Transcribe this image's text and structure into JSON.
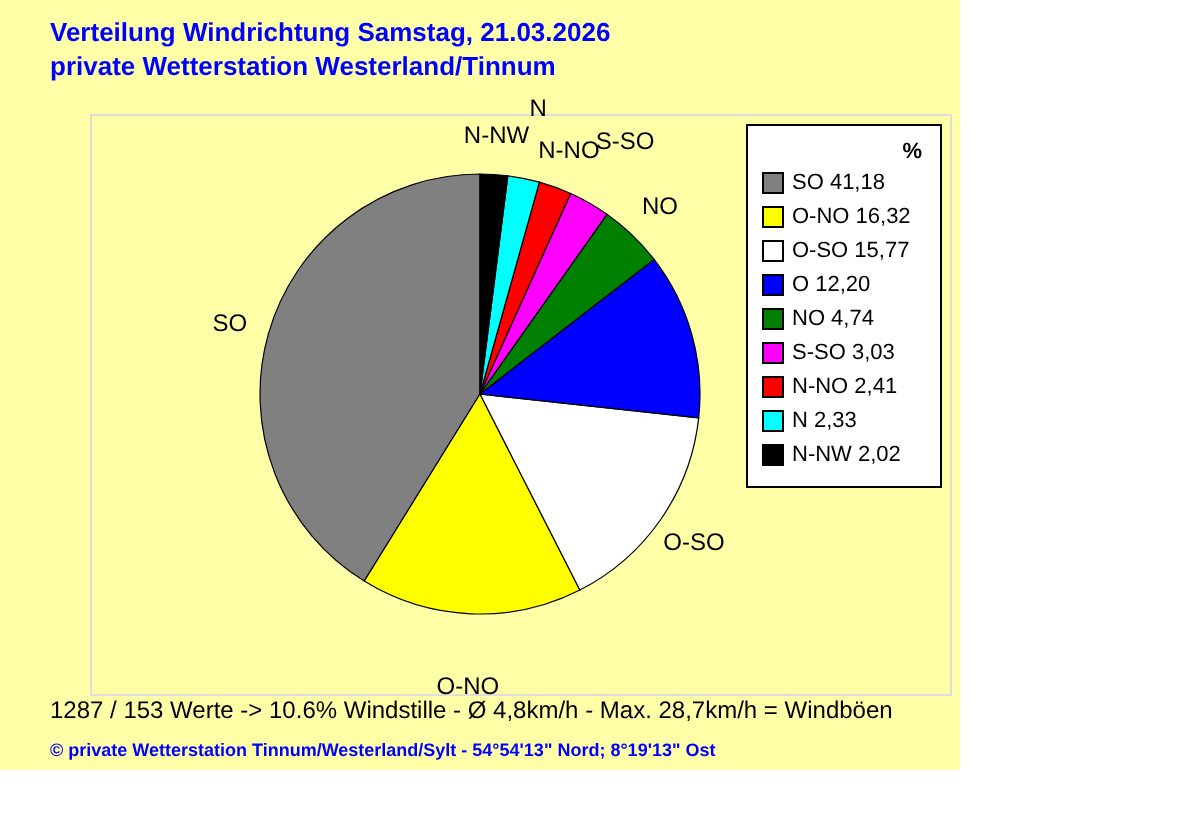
{
  "chart_data": {
    "type": "pie",
    "title": "Verteilung Windrichtung   Samstag, 21.03.2026",
    "subtitle": "private Wetterstation Westerland/Tinnum",
    "legend_title": "%",
    "legend": "top right",
    "categories": [
      "SO",
      "O-NO",
      "O-SO",
      "O",
      "NO",
      "S-SO",
      "N-NO",
      "N",
      "N-NW"
    ],
    "values": [
      41.18,
      16.32,
      15.77,
      12.2,
      4.74,
      3.03,
      2.41,
      2.33,
      2.02
    ],
    "value_labels": [
      "41,18",
      "16,32",
      "15,77",
      "12,20",
      "4,74",
      "3,03",
      "2,41",
      "2,33",
      "2,02"
    ],
    "colors": [
      "#808080",
      "#ffff00",
      "#ffffff",
      "#0000ff",
      "#008000",
      "#ff00ff",
      "#ff0000",
      "#00ffff",
      "#000000"
    ],
    "annotations": [
      "1287 / 153 Werte  -> 10.6% Windstille   -   Ø 4,8km/h  -  Max. 28,7km/h = Windböen",
      "© private Wetterstation Tinnum/Westerland/Sylt   -   54°54'13\" Nord; 8°19'13\" Ost"
    ]
  }
}
